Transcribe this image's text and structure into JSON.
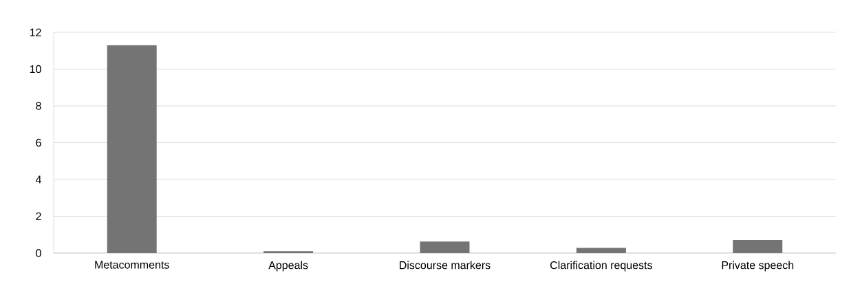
{
  "chart_data": {
    "type": "bar",
    "categories": [
      "Metacomments",
      "Appeals",
      "Discourse markers",
      "Clarification requests",
      "Private speech"
    ],
    "values": [
      11.3,
      0.1,
      0.63,
      0.28,
      0.71
    ],
    "color": "#747474",
    "ylim": [
      0,
      12
    ],
    "yticks": [
      0,
      2,
      4,
      6,
      8,
      10,
      12
    ],
    "grid": "y"
  }
}
